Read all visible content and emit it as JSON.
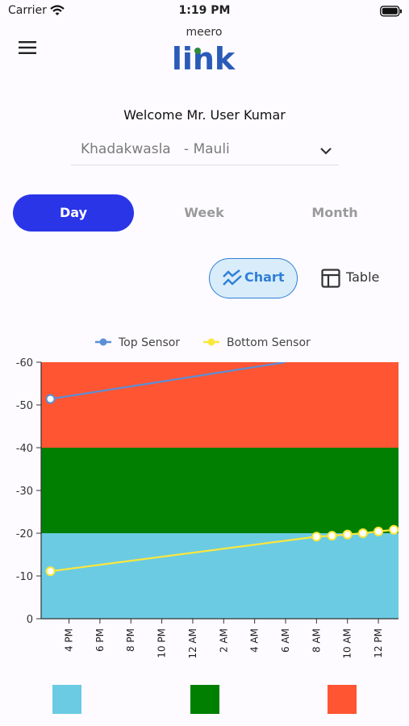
{
  "status_bar": {
    "carrier": "Carrier",
    "time": "1:19 PM"
  },
  "logo": {
    "top_text": "meero",
    "bottom_text": "link"
  },
  "welcome": "Welcome Mr. User Kumar",
  "location": {
    "value": "Khadakwasla   - Mauli"
  },
  "period_tabs": [
    {
      "label": "Day",
      "active": true
    },
    {
      "label": "Week",
      "active": false
    },
    {
      "label": "Month",
      "active": false
    }
  ],
  "view_toggle": {
    "chart_label": "Chart",
    "table_label": "Table"
  },
  "colors": {
    "accent_blue": "#2a35e8",
    "band_low": "#6bcbe3",
    "band_mid": "#017f01",
    "band_high": "#ff5533",
    "top_sensor": "#5b8fd6",
    "bottom_sensor": "#fbe73c"
  },
  "chart_data": {
    "type": "line",
    "legend": [
      "Top Sensor",
      "Bottom Sensor"
    ],
    "legend_position": "top-center",
    "ylim": [
      0,
      -60
    ],
    "yticks": [
      0,
      -10,
      -20,
      -30,
      -40,
      -50,
      -60
    ],
    "bands": [
      {
        "from": 0,
        "to": -20,
        "color": "#6bcbe3"
      },
      {
        "from": -20,
        "to": -40,
        "color": "#017f01"
      },
      {
        "from": -40,
        "to": -60,
        "color": "#ff5533"
      }
    ],
    "xticks": [
      "4 PM",
      "6 PM",
      "8 PM",
      "10 PM",
      "12 AM",
      "2 AM",
      "4 AM",
      "6 AM",
      "8 AM",
      "10 AM",
      "12 PM"
    ],
    "xrange_hours": [
      14.2,
      37.3
    ],
    "series": [
      {
        "name": "Top Sensor",
        "color": "#5b8fd6",
        "points": [
          {
            "t": 14.8,
            "y": -51.4,
            "marker": true
          },
          {
            "t": 30.0,
            "y": -60,
            "marker": false
          }
        ]
      },
      {
        "name": "Bottom Sensor",
        "color": "#fbe73c",
        "points": [
          {
            "t": 14.8,
            "y": -11.1,
            "marker": true
          },
          {
            "t": 32.0,
            "y": -19.2,
            "marker": true
          },
          {
            "t": 33.0,
            "y": -19.4,
            "marker": true
          },
          {
            "t": 34.0,
            "y": -19.7,
            "marker": true
          },
          {
            "t": 35.0,
            "y": -20.0,
            "marker": true
          },
          {
            "t": 36.0,
            "y": -20.4,
            "marker": true
          },
          {
            "t": 37.0,
            "y": -20.8,
            "marker": true
          }
        ]
      }
    ]
  }
}
